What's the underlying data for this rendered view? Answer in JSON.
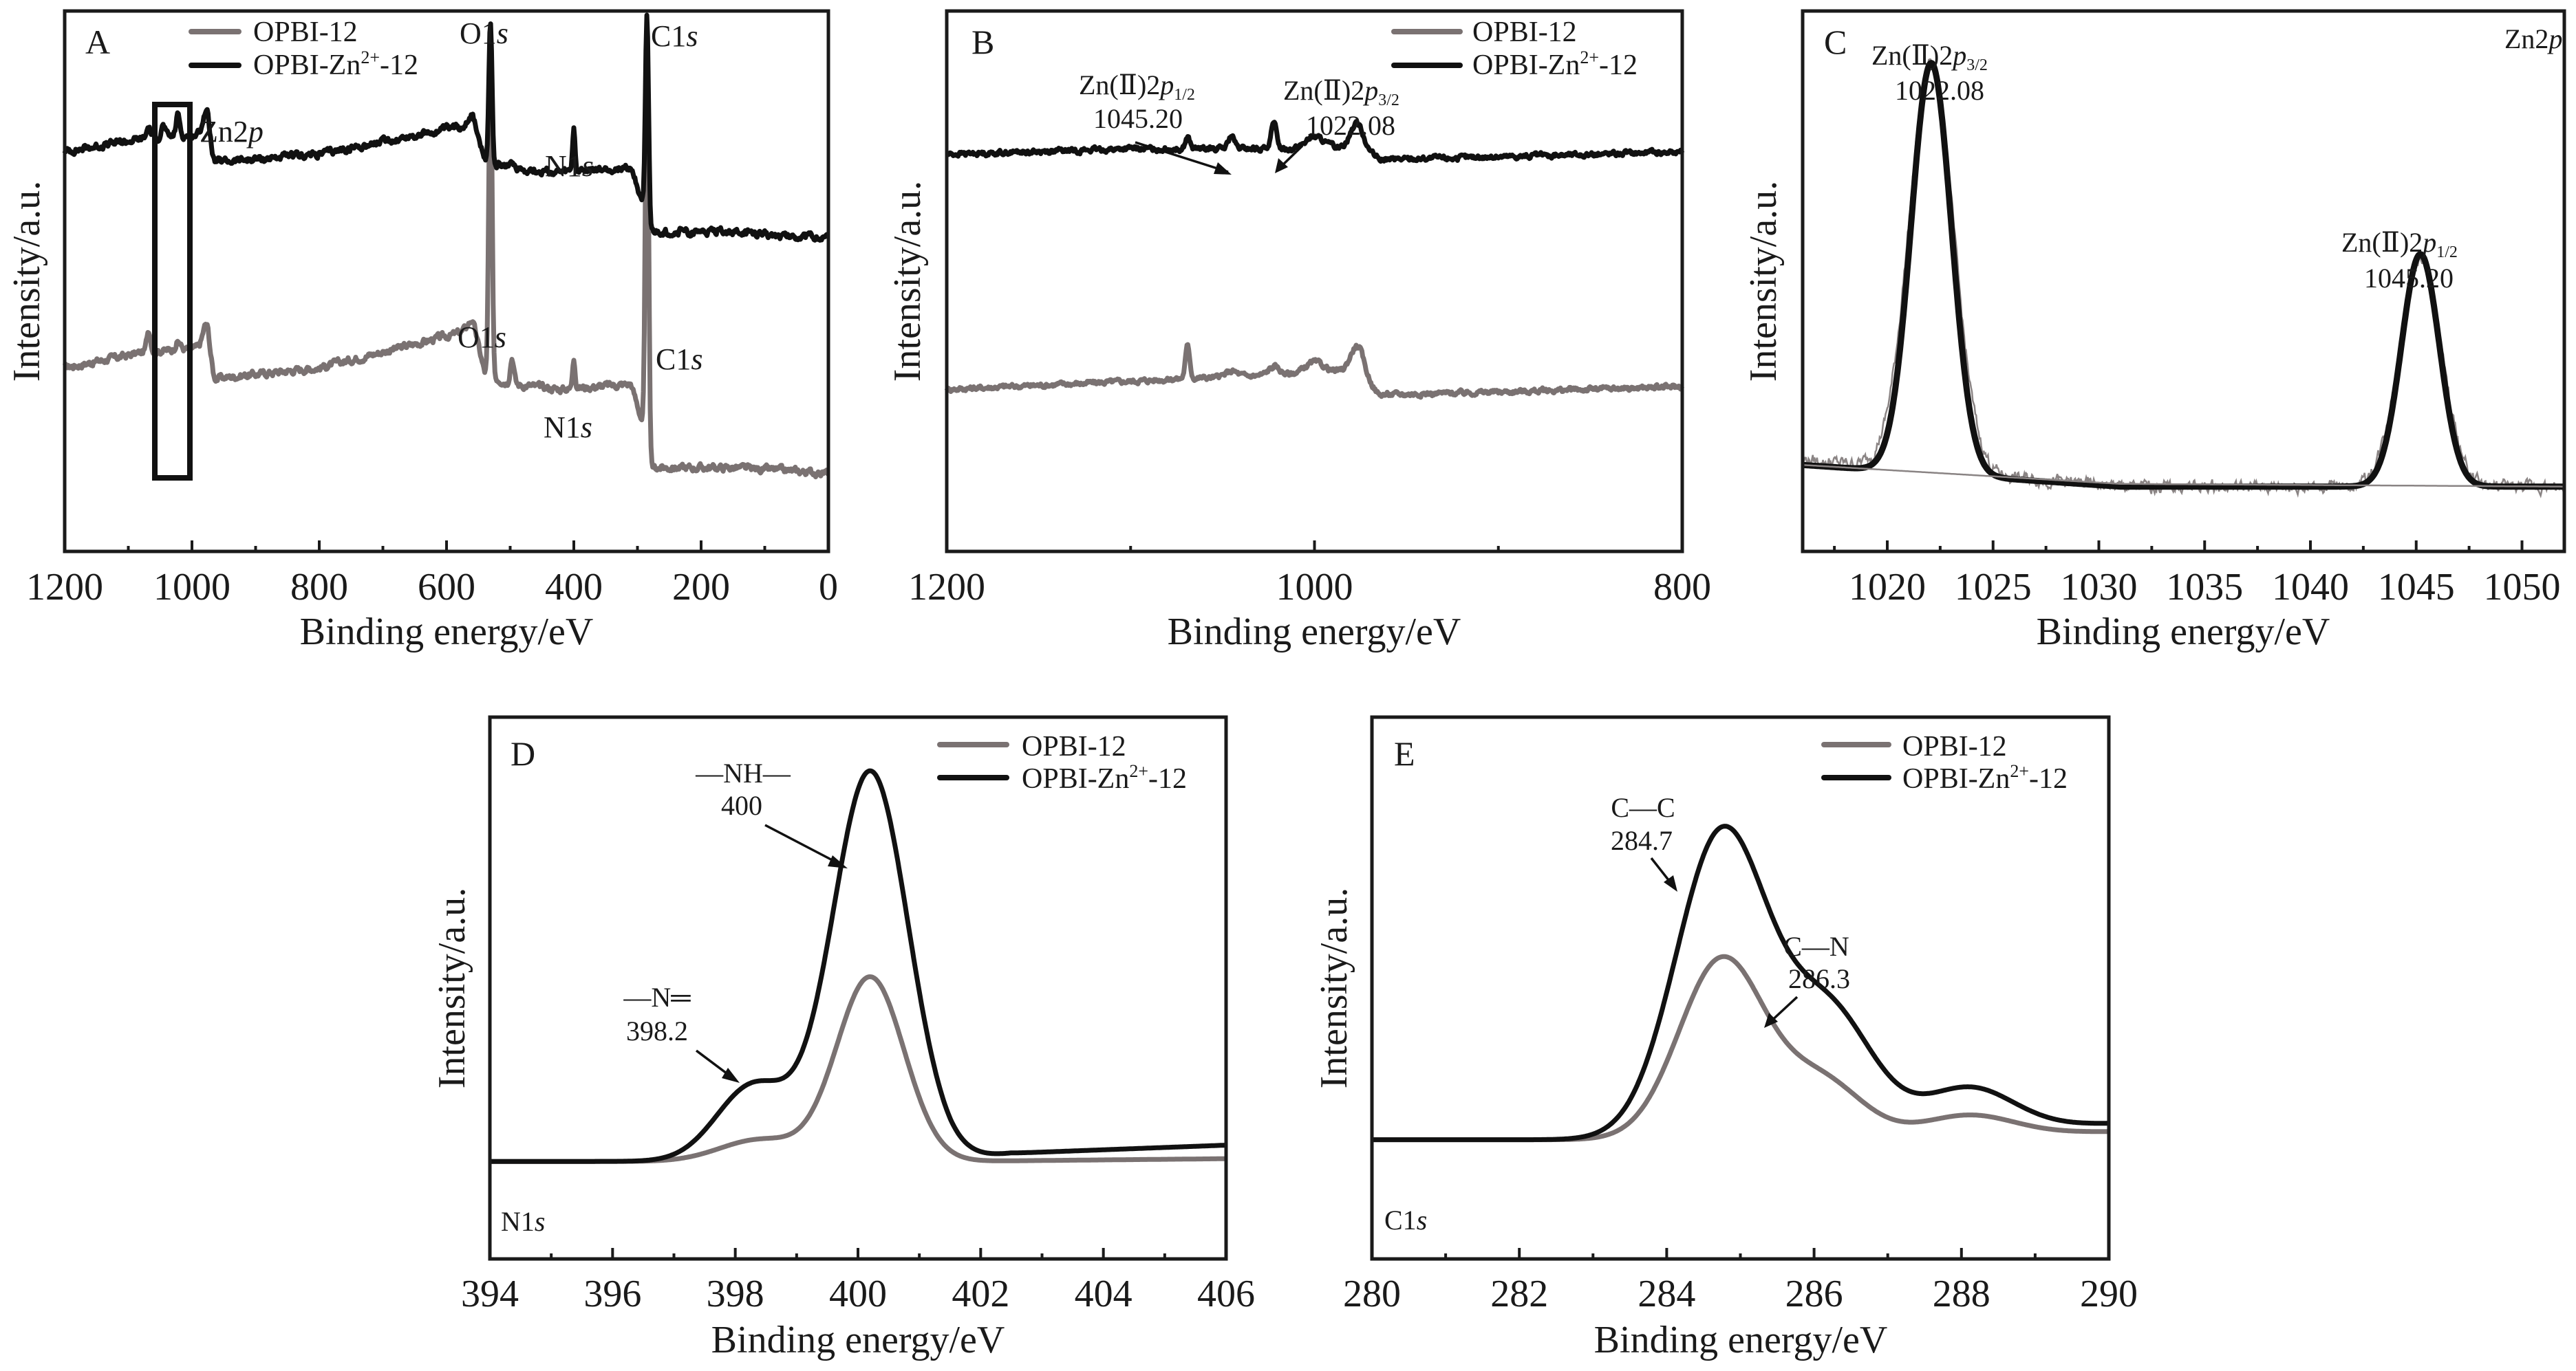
{
  "colors": {
    "OPBI-12": "#7a7272",
    "OPBI-Zn2+-12": "#111111",
    "frame": "#1a1a1a"
  },
  "legend_labels": {
    "opbi": "OPBI-12",
    "zn_prefix": "OPBI-Zn",
    "zn_sup": "2+",
    "zn_suffix": "-12"
  },
  "chart_data": [
    {
      "panel": "A",
      "type": "line",
      "title": "",
      "panel_label": "A",
      "xlabel": "Binding energy/eV",
      "ylabel": "Intensity/a.u.",
      "xlim": [
        1200,
        0
      ],
      "x_reversed": true,
      "ylim": [
        0,
        100
      ],
      "xticks": [
        1200,
        1000,
        800,
        600,
        400,
        200,
        0
      ],
      "xtick_labels": [
        "1200",
        "1000",
        "800",
        "600",
        "400",
        "200",
        "0"
      ],
      "minor_xticks": [
        1100,
        900,
        700,
        500,
        300,
        100
      ],
      "legend": "top-center",
      "highlight_box": {
        "x_range": [
          1050,
          1005
        ],
        "label": "Zn2p",
        "label_italic_part": "p",
        "label_plain_part": "Zn2"
      },
      "annotations": [
        {
          "text_plain": "O1",
          "text_italic": "s",
          "x": 531,
          "series": "OPBI-Zn2+-12"
        },
        {
          "text_plain": "N1",
          "text_italic": "s",
          "x": 400,
          "series": "OPBI-Zn2+-12"
        },
        {
          "text_plain": "C1",
          "text_italic": "s",
          "x": 285,
          "series": "OPBI-Zn2+-12"
        },
        {
          "text_plain": "O1",
          "text_italic": "s",
          "x": 531,
          "series": "OPBI-12"
        },
        {
          "text_plain": "N1",
          "text_italic": "s",
          "x": 400,
          "series": "OPBI-12"
        },
        {
          "text_plain": "C1",
          "text_italic": "s",
          "x": 285,
          "series": "OPBI-12"
        }
      ],
      "series": [
        {
          "name": "OPBI-12",
          "baseline": [
            [
              1200,
              34
            ],
            [
              1070,
              37
            ],
            [
              1000,
              37.5
            ],
            [
              975,
              38
            ],
            [
              965,
              32
            ],
            [
              800,
              34
            ],
            [
              560,
              41
            ],
            [
              540,
              33
            ],
            [
              500,
              31
            ],
            [
              420,
              30
            ],
            [
              310,
              31
            ],
            [
              290,
              23
            ],
            [
              280,
              15.5
            ],
            [
              150,
              15.5
            ],
            [
              0,
              14.5
            ]
          ],
          "peaks": [
            [
              1068,
              4,
              3
            ],
            [
              1022,
              1.5,
              4
            ],
            [
              978,
              4,
              5
            ],
            [
              558,
              2,
              8
            ],
            [
              531,
              60,
              2.5
            ],
            [
              497,
              5,
              3
            ],
            [
              400,
              6,
              2
            ],
            [
              285,
              78,
              2.5
            ]
          ],
          "noise": 0.5
        },
        {
          "name": "OPBI-Zn2+-12",
          "baseline": [
            [
              1200,
              74
            ],
            [
              1070,
              76.5
            ],
            [
              1000,
              77
            ],
            [
              975,
              77.5
            ],
            [
              965,
              72
            ],
            [
              800,
              73.5
            ],
            [
              560,
              79
            ],
            [
              540,
              72
            ],
            [
              500,
              71
            ],
            [
              420,
              70
            ],
            [
              310,
              71
            ],
            [
              290,
              64
            ],
            [
              280,
              59
            ],
            [
              150,
              59
            ],
            [
              0,
              58
            ]
          ],
          "peaks": [
            [
              1068,
              2,
              3
            ],
            [
              1045,
              2.2,
              3
            ],
            [
              1022,
              4,
              3
            ],
            [
              978,
              4,
              5
            ],
            [
              558,
              2,
              8
            ],
            [
              531,
              26,
              2.5
            ],
            [
              497,
              1.5,
              3
            ],
            [
              400,
              8,
              2
            ],
            [
              285,
              37,
              2.5
            ],
            [
              230,
              0.8,
              3
            ],
            [
              170,
              1.2,
              3
            ]
          ],
          "noise": 0.5
        }
      ]
    },
    {
      "panel": "B",
      "type": "line",
      "panel_label": "B",
      "xlabel": "Binding energy/eV",
      "ylabel": "Intensity/a.u.",
      "xlim": [
        1200,
        800
      ],
      "x_reversed": true,
      "ylim": [
        0,
        100
      ],
      "xticks": [
        1200,
        1000,
        800
      ],
      "xtick_labels": [
        "1200",
        "1000",
        "800"
      ],
      "minor_xticks": [
        1100,
        900
      ],
      "legend": "top-right",
      "annotations": [
        {
          "species": "Zn(Ⅱ)2",
          "orbital": "p",
          "subscript": "1/2",
          "value": "1045.20",
          "x": 1045.2
        },
        {
          "species": "Zn(Ⅱ)2",
          "orbital": "p",
          "subscript": "3/2",
          "value": "1022.08",
          "x": 1022.08
        }
      ],
      "series": [
        {
          "name": "OPBI-12",
          "baseline": [
            [
              1200,
              30
            ],
            [
              1100,
              31.5
            ],
            [
              1070,
              32
            ],
            [
              1000,
              33
            ],
            [
              975,
              33.5
            ],
            [
              965,
              29
            ],
            [
              900,
              29.5
            ],
            [
              800,
              30.5
            ]
          ],
          "peaks": [
            [
              1069,
              6,
              1.2
            ],
            [
              1045,
              1,
              3
            ],
            [
              1022,
              1.5,
              3
            ],
            [
              1000,
              2,
              5
            ],
            [
              977,
              4.5,
              3.5
            ]
          ],
          "noise": 0.35
        },
        {
          "name": "OPBI-Zn2+-12",
          "baseline": [
            [
              1200,
              73.5
            ],
            [
              1100,
              74.5
            ],
            [
              1000,
              74.5
            ],
            [
              975,
              75
            ],
            [
              965,
              72.5
            ],
            [
              900,
              73
            ],
            [
              800,
              74
            ]
          ],
          "peaks": [
            [
              1069,
              2.2,
              1.2
            ],
            [
              1045.2,
              2.4,
              1.6
            ],
            [
              1022.08,
              4.5,
              1.6
            ],
            [
              1000,
              2.2,
              5
            ],
            [
              977,
              4.2,
              3.5
            ]
          ],
          "noise": 0.35
        }
      ]
    },
    {
      "panel": "C",
      "type": "line",
      "panel_label": "C",
      "corner_label_plain": "Zn2",
      "corner_label_italic": "p",
      "xlabel": "Binding energy/eV",
      "ylabel": "Intensity/a.u.",
      "xlim": [
        1016,
        1052
      ],
      "x_reversed": false,
      "ylim": [
        0,
        100
      ],
      "xticks": [
        1020,
        1025,
        1030,
        1035,
        1040,
        1045,
        1050
      ],
      "xtick_labels": [
        "1020",
        "1025",
        "1030",
        "1035",
        "1040",
        "1045",
        "1050"
      ],
      "minor_xticks": [
        1017.5,
        1022.5,
        1027.5,
        1032.5,
        1037.5,
        1042.5,
        1047.5
      ],
      "annotations": [
        {
          "species": "Zn(Ⅱ)2",
          "orbital": "p",
          "subscript": "3/2",
          "value": "1022.08",
          "x": 1022.08
        },
        {
          "species": "Zn(Ⅱ)2",
          "orbital": "p",
          "subscript": "1/2",
          "value": "1045.20",
          "x": 1045.2
        }
      ],
      "series": [
        {
          "name": "raw",
          "baseline": [
            [
              1016,
              17
            ],
            [
              1031,
              12
            ],
            [
              1052,
              12
            ]
          ],
          "peaks": [
            [
              1022.08,
              76,
              1.05
            ],
            [
              1045.2,
              42,
              1.0
            ]
          ],
          "noise": 0.9
        },
        {
          "name": "fit",
          "baseline": [
            [
              1016,
              16
            ],
            [
              1031,
              12
            ],
            [
              1052,
              12
            ]
          ],
          "peaks": [
            [
              1022.08,
              76,
              0.95
            ],
            [
              1045.2,
              43,
              0.9
            ]
          ],
          "noise": 0
        },
        {
          "name": "background",
          "baseline": [
            [
              1016,
              16
            ],
            [
              1031,
              12.5
            ],
            [
              1052,
              12
            ]
          ],
          "peaks": [],
          "noise": 0
        }
      ]
    },
    {
      "panel": "D",
      "type": "line",
      "panel_label": "D",
      "corner_label_plain": "N1",
      "corner_label_italic": "s",
      "xlabel": "Binding energy/eV",
      "ylabel": "Intensity/a.u.",
      "xlim": [
        394,
        406
      ],
      "x_reversed": false,
      "ylim": [
        0,
        100
      ],
      "xticks": [
        394,
        396,
        398,
        400,
        402,
        404,
        406
      ],
      "xtick_labels": [
        "394",
        "396",
        "398",
        "400",
        "402",
        "404",
        "406"
      ],
      "minor_xticks": [
        395,
        397,
        399,
        401,
        403,
        405
      ],
      "legend": "top-right",
      "annotations": [
        {
          "group": "—NH—",
          "value": "400",
          "x": 400.2
        },
        {
          "group": "—N═",
          "value": "398.2",
          "x": 398.2
        }
      ],
      "series": [
        {
          "name": "OPBI-12",
          "baseline": [
            [
              394,
              18
            ],
            [
              401.5,
              18
            ],
            [
              406,
              18.5
            ]
          ],
          "peaks": [
            [
              398.4,
              4,
              0.65
            ],
            [
              400.2,
              34,
              0.55
            ]
          ],
          "noise": 0
        },
        {
          "name": "OPBI-Zn2+-12",
          "baseline": [
            [
              394,
              18
            ],
            [
              401.5,
              18
            ],
            [
              402.5,
              19.5
            ],
            [
              406,
              21
            ]
          ],
          "peaks": [
            [
              398.3,
              14,
              0.6
            ],
            [
              400.2,
              72,
              0.62
            ]
          ],
          "noise": 0
        }
      ]
    },
    {
      "panel": "E",
      "type": "line",
      "panel_label": "E",
      "corner_label_plain": "C1",
      "corner_label_italic": "s",
      "xlabel": "Binding energy/eV",
      "ylabel": "Intensity/a.u.",
      "xlim": [
        280,
        290
      ],
      "x_reversed": false,
      "ylim": [
        0,
        100
      ],
      "xticks": [
        280,
        282,
        284,
        286,
        288,
        290
      ],
      "xtick_labels": [
        "280",
        "282",
        "284",
        "286",
        "288",
        "290"
      ],
      "minor_xticks": [
        281,
        283,
        285,
        287,
        289
      ],
      "legend": "top-right",
      "annotations": [
        {
          "group": "C—C",
          "value": "284.7",
          "x": 284.75
        },
        {
          "group": "C—N",
          "value": "286.3",
          "x": 286.3
        }
      ],
      "series": [
        {
          "name": "OPBI-12",
          "baseline": [
            [
              280,
              22
            ],
            [
              283.5,
              22
            ],
            [
              290,
              23.5
            ]
          ],
          "peaks": [
            [
              284.75,
              33,
              0.58
            ],
            [
              286.1,
              10,
              0.55
            ],
            [
              288.1,
              3.5,
              0.6
            ]
          ],
          "noise": 0
        },
        {
          "name": "OPBI-Zn2+-12",
          "baseline": [
            [
              280,
              22
            ],
            [
              283.5,
              22
            ],
            [
              290,
              25
            ]
          ],
          "peaks": [
            [
              284.75,
              56,
              0.62
            ],
            [
              286.2,
              22,
              0.6
            ],
            [
              288.1,
              7.5,
              0.6
            ]
          ],
          "noise": 0
        }
      ]
    }
  ]
}
